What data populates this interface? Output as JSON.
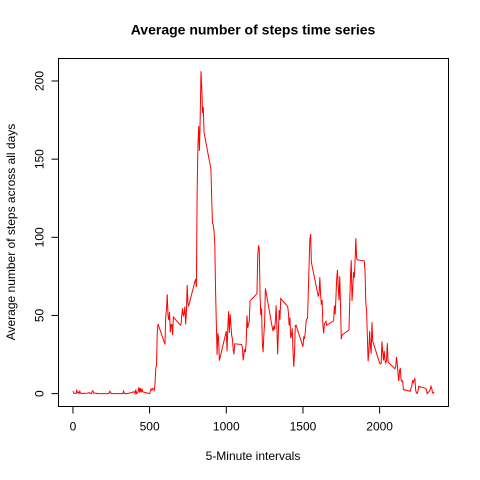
{
  "chart_data": {
    "type": "line",
    "title": "Average number of steps time series",
    "xlabel": "5-Minute intervals",
    "ylabel": "Average number of steps across all days",
    "x": [
      0,
      5,
      10,
      15,
      20,
      25,
      30,
      35,
      40,
      45,
      50,
      55,
      100,
      105,
      110,
      115,
      120,
      125,
      130,
      135,
      140,
      145,
      150,
      155,
      200,
      205,
      210,
      215,
      220,
      225,
      230,
      235,
      240,
      245,
      250,
      255,
      300,
      305,
      310,
      315,
      320,
      325,
      330,
      335,
      340,
      345,
      350,
      355,
      400,
      405,
      410,
      415,
      420,
      425,
      430,
      435,
      440,
      445,
      450,
      455,
      500,
      505,
      510,
      515,
      520,
      525,
      530,
      535,
      540,
      545,
      550,
      555,
      600,
      605,
      610,
      615,
      620,
      625,
      630,
      635,
      640,
      645,
      650,
      655,
      700,
      705,
      710,
      715,
      720,
      725,
      730,
      735,
      740,
      745,
      750,
      755,
      800,
      805,
      810,
      815,
      820,
      825,
      830,
      835,
      840,
      845,
      850,
      855,
      900,
      905,
      910,
      915,
      920,
      925,
      930,
      935,
      940,
      945,
      950,
      955,
      1000,
      1005,
      1010,
      1015,
      1020,
      1025,
      1030,
      1035,
      1040,
      1045,
      1050,
      1055,
      1100,
      1105,
      1110,
      1115,
      1120,
      1125,
      1130,
      1135,
      1140,
      1145,
      1150,
      1155,
      1200,
      1205,
      1210,
      1215,
      1220,
      1225,
      1230,
      1235,
      1240,
      1245,
      1250,
      1255,
      1300,
      1305,
      1310,
      1315,
      1320,
      1325,
      1330,
      1335,
      1340,
      1345,
      1350,
      1355,
      1400,
      1405,
      1410,
      1415,
      1420,
      1425,
      1430,
      1435,
      1440,
      1445,
      1450,
      1455,
      1500,
      1505,
      1510,
      1515,
      1520,
      1525,
      1530,
      1535,
      1540,
      1545,
      1550,
      1555,
      1600,
      1605,
      1610,
      1615,
      1620,
      1625,
      1630,
      1635,
      1640,
      1645,
      1650,
      1655,
      1700,
      1705,
      1710,
      1715,
      1720,
      1725,
      1730,
      1735,
      1740,
      1745,
      1750,
      1755,
      1800,
      1805,
      1810,
      1815,
      1820,
      1825,
      1830,
      1835,
      1840,
      1845,
      1850,
      1855,
      1900,
      1905,
      1910,
      1915,
      1920,
      1925,
      1930,
      1935,
      1940,
      1945,
      1950,
      1955,
      2000,
      2005,
      2010,
      2015,
      2020,
      2025,
      2030,
      2035,
      2040,
      2045,
      2050,
      2055,
      2100,
      2105,
      2110,
      2115,
      2120,
      2125,
      2130,
      2135,
      2140,
      2145,
      2150,
      2155,
      2200,
      2205,
      2210,
      2215,
      2220,
      2225,
      2230,
      2235,
      2240,
      2245,
      2250,
      2255,
      2300,
      2305,
      2310,
      2315,
      2320,
      2325,
      2330,
      2335,
      2340,
      2345,
      2350,
      2355
    ],
    "series": [
      {
        "name": "steps",
        "color": "#ff0000",
        "values": [
          1.7,
          0.3,
          0.1,
          0.2,
          0.1,
          2.1,
          0.5,
          0.9,
          0,
          1.5,
          0.3,
          0.1,
          0.3,
          0.7,
          0.2,
          0.3,
          0,
          1.1,
          1.8,
          0.2,
          0.2,
          0.4,
          0.3,
          0,
          0,
          0,
          0,
          0,
          0,
          0,
          0.2,
          0,
          1.5,
          0.9,
          0,
          0,
          0,
          0,
          0,
          0,
          0,
          0,
          1.6,
          0,
          0,
          0.1,
          0,
          0,
          1.2,
          0,
          2.6,
          0,
          0.3,
          1.3,
          4.1,
          0.7,
          3.5,
          0.8,
          3.1,
          1.1,
          0,
          1.6,
          3,
          2.2,
          3.3,
          3,
          2.1,
          6.1,
          16,
          18.3,
          39.5,
          44.5,
          31.5,
          49.3,
          53.8,
          63.5,
          50,
          47.1,
          52.2,
          39.3,
          44,
          44.2,
          37.4,
          49,
          43.8,
          44.4,
          50.5,
          54.5,
          49.9,
          51,
          55.7,
          44.3,
          52.3,
          69.5,
          57.8,
          56.2,
          73.4,
          68.2,
          129.4,
          157.5,
          171.2,
          155.4,
          177.3,
          206.2,
          195.9,
          179.6,
          183.4,
          167,
          143.5,
          124,
          109.1,
          108.1,
          103.7,
          95.9,
          66.2,
          45.2,
          24.8,
          38.8,
          35,
          21.1,
          40,
          27,
          42.4,
          52.7,
          38.9,
          50.8,
          44.3,
          37.4,
          34.7,
          28.3,
          25.1,
          31.9,
          31.4,
          29.7,
          21.3,
          25.5,
          28.4,
          26.5,
          33.3,
          50,
          42,
          44.6,
          46,
          59.3,
          63.9,
          87.7,
          94.8,
          92.8,
          63.4,
          50.2,
          54.5,
          32.4,
          26.5,
          37.7,
          45.1,
          67.3,
          42.3,
          39.9,
          43.3,
          41,
          46.2,
          56.4,
          42.8,
          25.1,
          40,
          53.5,
          47.3,
          60.8,
          55.8,
          52,
          43.6,
          48.7,
          35.5,
          37.5,
          41.8,
          27.5,
          17.1,
          26.1,
          43.6,
          43.8,
          30,
          36.1,
          35.5,
          38.8,
          46,
          47.8,
          48.1,
          65.3,
          82.9,
          98.7,
          102.1,
          84,
          62.1,
          64.1,
          74.5,
          63.2,
          56.9,
          59.8,
          43.9,
          38.6,
          44.7,
          45.5,
          46.2,
          43.7,
          46.6,
          56.3,
          50.7,
          61.2,
          73.4,
          79.1,
          68.9,
          59.7,
          75.1,
          56.5,
          34.8,
          37.5,
          40.7,
          58,
          74.7,
          85.3,
          59.3,
          67.8,
          77.7,
          74.2,
          85.3,
          99.5,
          86.6,
          85.6,
          84.9,
          77.8,
          58,
          53.4,
          36.3,
          20.7,
          27.4,
          40,
          30.2,
          25.5,
          45.7,
          33.5,
          19.6,
          19,
          19.3,
          33.3,
          26.8,
          21.2,
          27.3,
          21.3,
          19.5,
          21.3,
          32.3,
          20.2,
          15.9,
          17.2,
          23.5,
          19.2,
          12.5,
          8,
          14.7,
          16.3,
          8.7,
          7.8,
          8.1,
          2.6,
          1.5,
          3.7,
          4.8,
          8.5,
          7.1,
          8.7,
          9.8,
          2.2,
          0.3,
          0.1,
          1.6,
          4.6,
          3.3,
          2.8,
          0,
          0.8,
          1,
          1.6,
          2.6,
          4.7,
          3.3,
          0.6,
          0.2,
          1.1
        ]
      }
    ],
    "xlim": [
      -94.2,
      2449.2
    ],
    "xticks": [
      0,
      500,
      1000,
      1500,
      2000
    ],
    "ylim": [
      -8.25,
      214.4
    ],
    "yticks": [
      0,
      50,
      100,
      150,
      200
    ]
  }
}
